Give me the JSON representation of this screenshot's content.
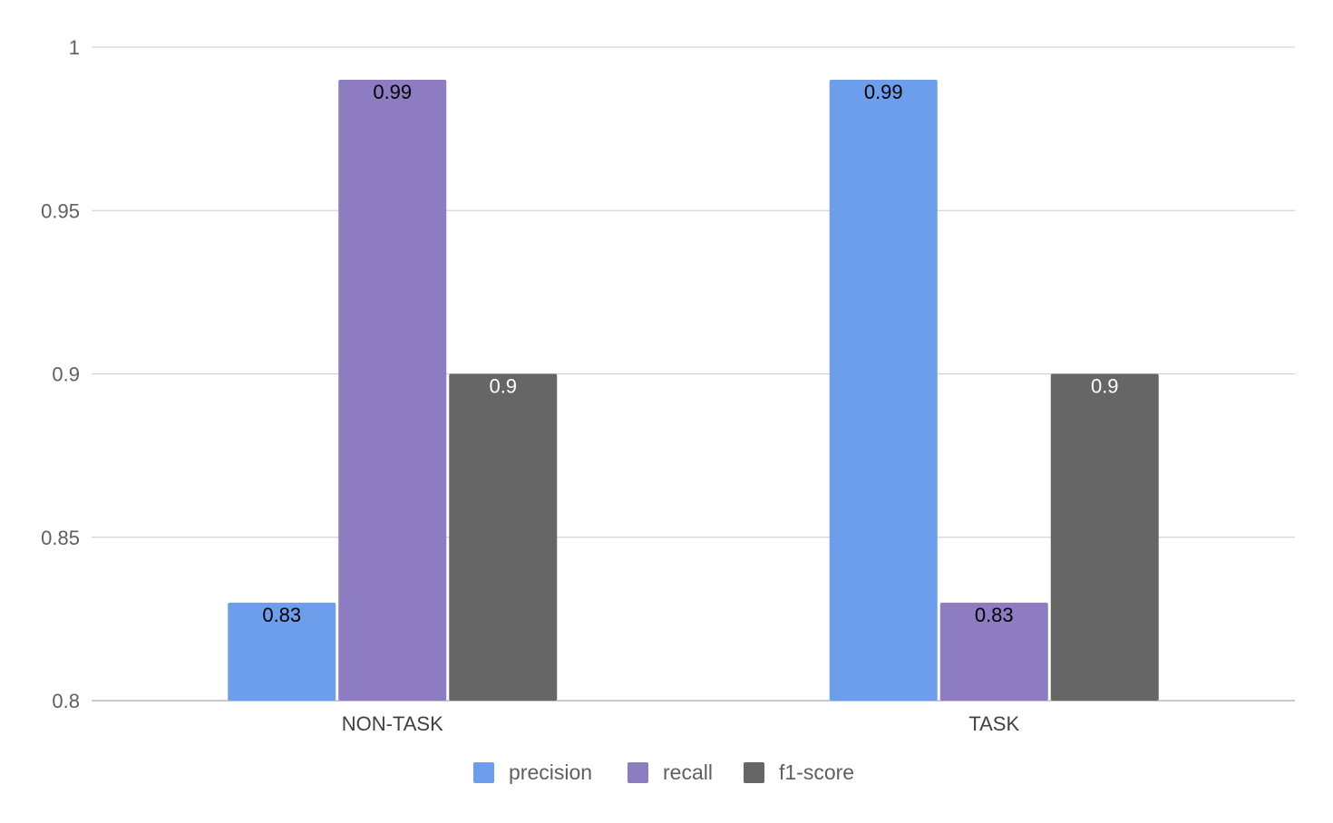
{
  "chart_data": {
    "type": "bar",
    "title": "",
    "xlabel": "",
    "ylabel": "",
    "categories": [
      "NON-TASK",
      "TASK"
    ],
    "series": [
      {
        "name": "precision",
        "color": "#6d9eeb",
        "values": [
          0.83,
          0.99
        ],
        "labels": [
          "0.83",
          "0.99"
        ]
      },
      {
        "name": "recall",
        "color": "#8e7cc3",
        "values": [
          0.99,
          0.83
        ],
        "labels": [
          "0.99",
          "0.83"
        ]
      },
      {
        "name": "f1-score",
        "color": "#666666",
        "values": [
          0.9,
          0.9
        ],
        "labels": [
          "0.9",
          "0.9"
        ]
      }
    ],
    "ylim": [
      0.8,
      1.0
    ],
    "yticks": [
      0.8,
      0.85,
      0.9,
      0.95,
      1.0
    ],
    "ytick_labels": [
      "0.8",
      "0.85",
      "0.9",
      "0.95",
      "1"
    ],
    "grid": true,
    "legend_position": "bottom-center"
  }
}
